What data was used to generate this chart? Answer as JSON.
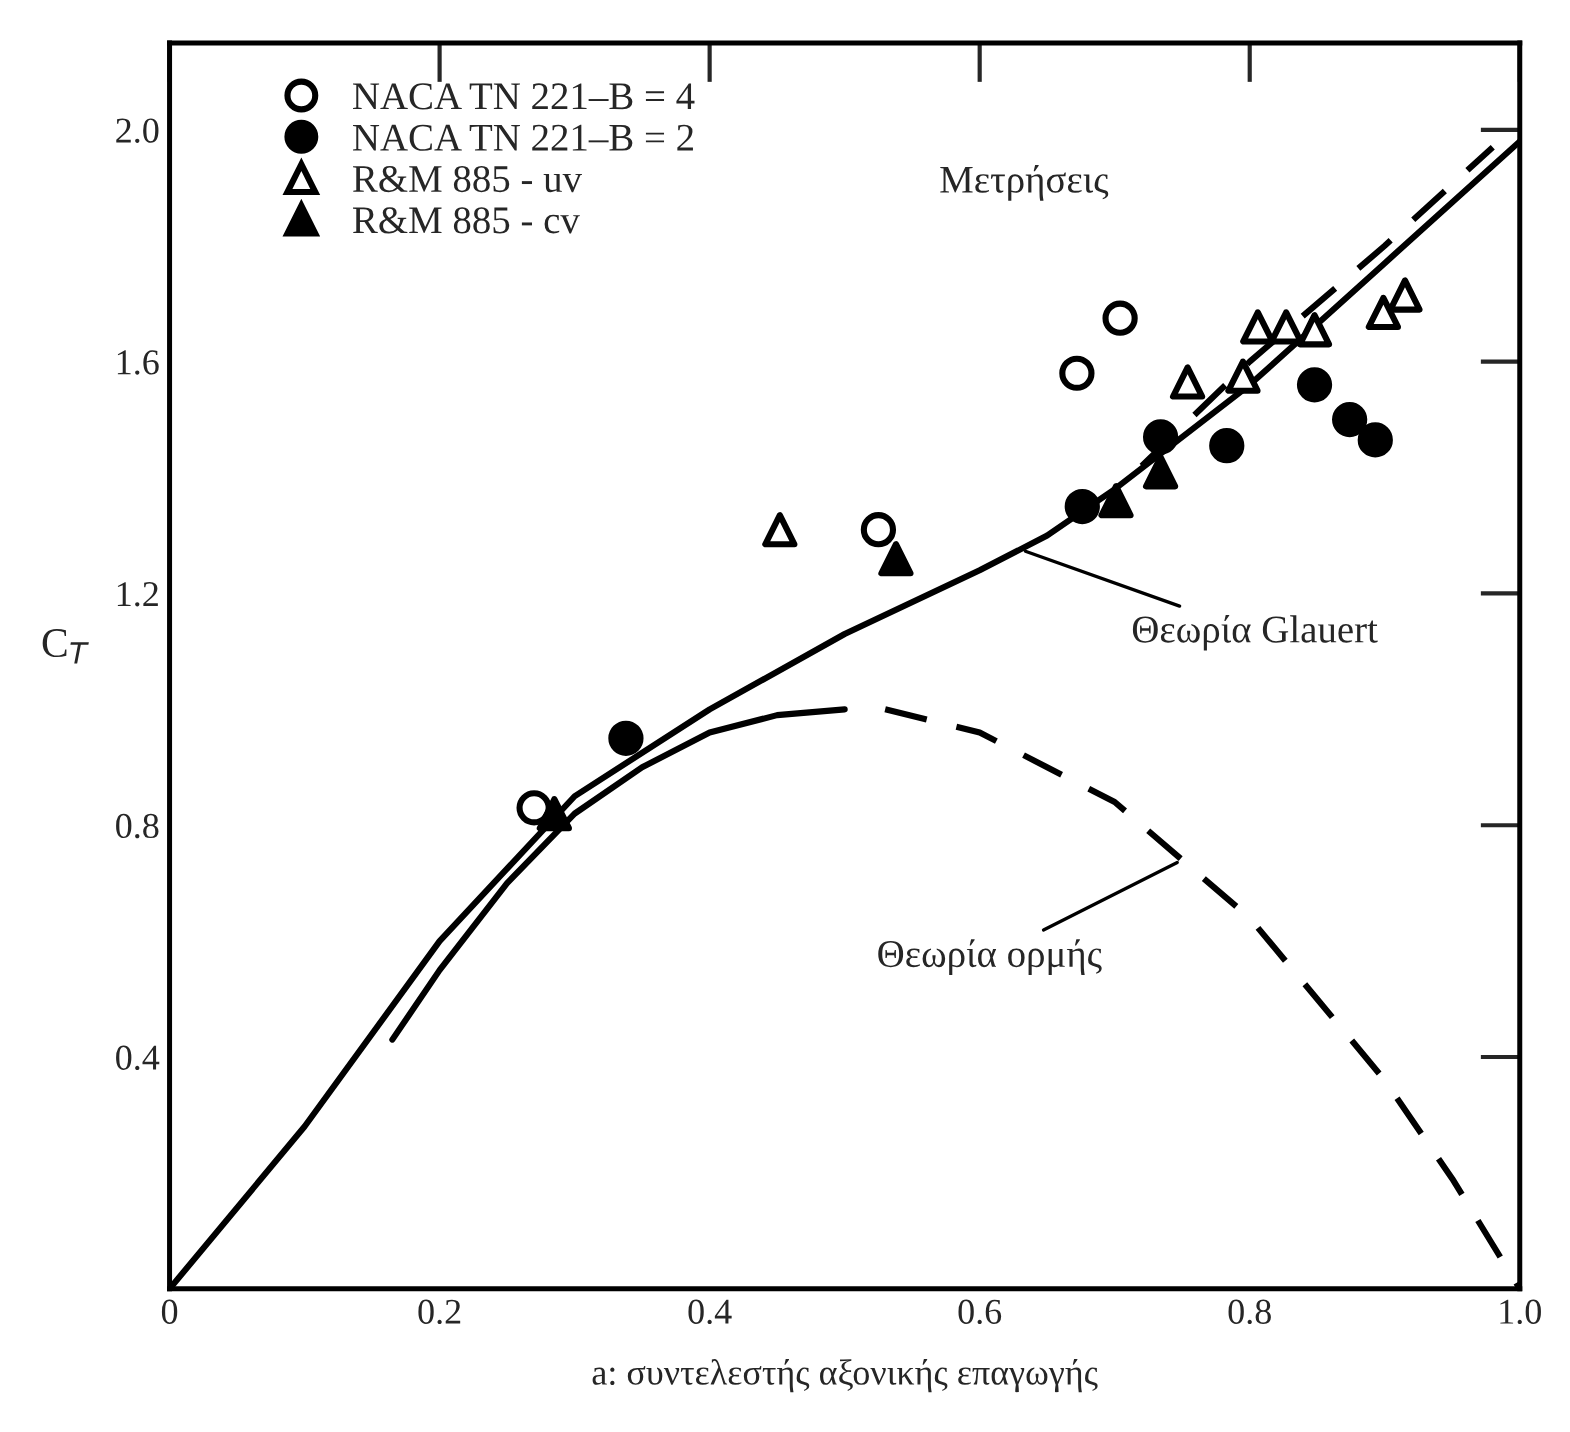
{
  "chart_data": {
    "type": "scatter",
    "xlabel": "a: συντελεστής αξονικής επαγωγής",
    "ylabel": "C$_{T}$",
    "xlim": [
      0,
      1.0
    ],
    "ylim": [
      0,
      2.15
    ],
    "xticks": [
      0,
      0.2,
      0.4,
      0.6,
      0.8,
      {
        "value": 1,
        "label": "1.0"
      }
    ],
    "yticks": [
      0.4,
      0.8,
      1.2,
      1.6,
      {
        "value": 2,
        "label": "2.0"
      }
    ],
    "grid": false,
    "legend": "top left",
    "series": [
      {
        "name": "NACA TN 221–B = 4",
        "marker": "circle",
        "color": "#ffffff",
        "x": [
          0.27,
          0.525,
          0.672,
          0.704
        ],
        "values": [
          0.83,
          1.31,
          1.58,
          1.675
        ]
      },
      {
        "name": "NACA TN 221–B = 2",
        "marker": "circle",
        "color": "#000000",
        "x": [
          0.338,
          0.676,
          0.734,
          0.783,
          0.848,
          0.874,
          0.893
        ],
        "values": [
          0.95,
          1.35,
          1.47,
          1.455,
          1.56,
          1.5,
          1.465
        ]
      },
      {
        "name": "R&M 885 - uv",
        "marker": "triangle",
        "color": "#ffffff",
        "x": [
          0.452,
          0.754,
          0.795,
          0.806,
          0.827,
          0.848,
          0.899,
          0.915
        ],
        "values": [
          1.31,
          1.565,
          1.575,
          1.66,
          1.66,
          1.655,
          1.685,
          1.715
        ]
      },
      {
        "name": "R&M 885 - cv",
        "marker": "triangle",
        "color": "#000000",
        "x": [
          0.285,
          0.538,
          0.701,
          0.734
        ],
        "values": [
          0.82,
          1.26,
          1.36,
          1.41
        ]
      },
      {
        "type": "line",
        "line_style": "solid",
        "color": "#000000",
        "x": [
          0,
          0.1,
          0.2,
          0.3,
          0.4,
          0.5,
          0.6,
          0.65,
          0.7,
          0.8,
          0.9,
          1.0
        ],
        "values": [
          0,
          0.28,
          0.6,
          0.85,
          1.0,
          1.13,
          1.24,
          1.3,
          1.38,
          1.56,
          1.77,
          1.98
        ]
      },
      {
        "type": "line",
        "line_style": "dashed",
        "color": "#000000",
        "x": [
          0.72,
          0.8,
          0.9,
          0.98
        ],
        "values": [
          1.42,
          1.6,
          1.8,
          1.97
        ]
      },
      {
        "type": "line",
        "line_style": "solid",
        "color": "#000000",
        "x": [
          0.165,
          0.2,
          0.25,
          0.3,
          0.35,
          0.4,
          0.45,
          0.5
        ],
        "values": [
          0.43,
          0.55,
          0.7,
          0.82,
          0.9,
          0.96,
          0.99,
          1.0
        ]
      },
      {
        "type": "line",
        "line_style": "dashed",
        "color": "#000000",
        "x": [
          0.53,
          0.6,
          0.7,
          0.8,
          0.9,
          0.95,
          1.0
        ],
        "values": [
          1.0,
          0.96,
          0.84,
          0.64,
          0.36,
          0.19,
          0.0
        ]
      }
    ],
    "annotations": [
      {
        "text": "Θεωρία Glauert",
        "x": 0.63,
        "y": 1.276
      },
      {
        "text": "Θεωρία ορμής",
        "x": 0.75,
        "y": 0.74
      },
      "Μετρήσεις"
    ]
  }
}
